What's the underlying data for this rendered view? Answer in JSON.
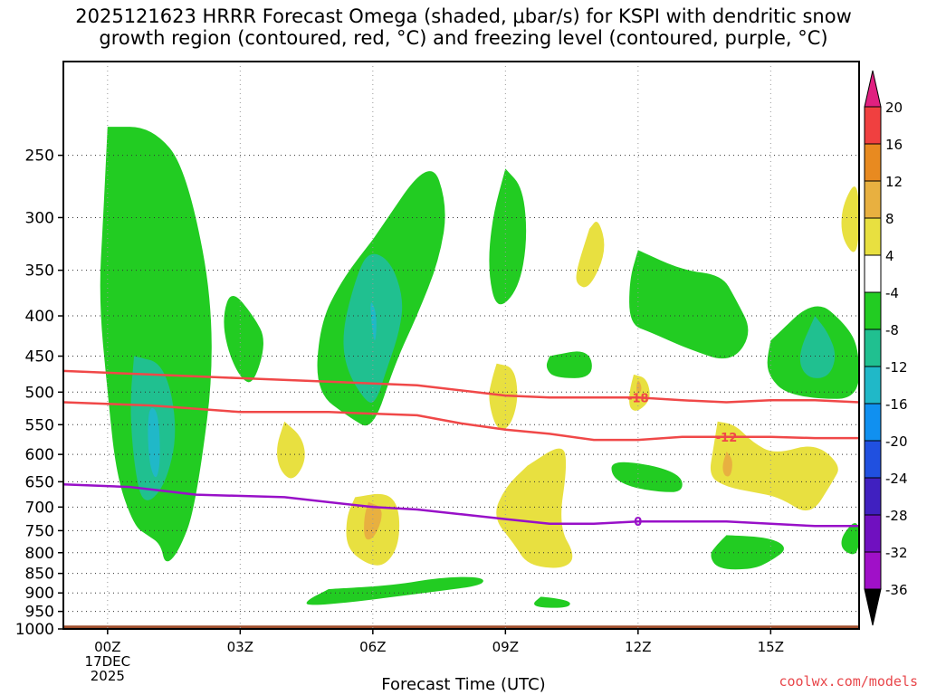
{
  "title_line1": "2025121623 HRRR Forecast Omega (shaded, μbar/s) for KSPI with dendritic snow",
  "title_line2": "growth region (contoured, red, °C) and freezing level (contoured, purple, °C)",
  "credit": "coolwx.com/models",
  "chart_data": {
    "type": "time-height contour",
    "title": "2025121623 HRRR Forecast Omega (shaded, μbar/s) for KSPI with dendritic snow growth region (contoured, red, °C) and freezing level (contoured, purple, °C)",
    "xlabel": "Forecast Time (UTC)",
    "ylabel": "",
    "x_ticks": [
      "00Z",
      "03Z",
      "06Z",
      "09Z",
      "12Z",
      "15Z"
    ],
    "x_hours": [
      0,
      3,
      6,
      9,
      12,
      15
    ],
    "x_range_hours": [
      -1,
      17
    ],
    "date_label": [
      "17DEC",
      "2025"
    ],
    "y_ticks": [
      250,
      300,
      350,
      400,
      450,
      500,
      550,
      600,
      650,
      700,
      750,
      800,
      850,
      900,
      950,
      1000
    ],
    "y_range_hpa": [
      190,
      1000
    ],
    "grid": true,
    "colorbar": {
      "labels": [
        "20",
        "16",
        "12",
        "8",
        "4",
        "-4",
        "-8",
        "-12",
        "-16",
        "-20",
        "-24",
        "-28",
        "-32",
        "-36"
      ],
      "levels": [
        20,
        16,
        12,
        8,
        4,
        -4,
        -8,
        -12,
        -16,
        -20,
        -24,
        -28,
        -32,
        -36
      ],
      "colors": [
        "#f0c800",
        "#e8e040",
        "#e8b040",
        "#e88a20",
        "#f04040",
        "#e02080",
        "#ffffff",
        "#22cc22",
        "#20c090",
        "#20b8c8",
        "#1090f0",
        "#2050e0",
        "#4020c0",
        "#7010c0",
        "#a010c8",
        "#a0a0a0",
        "#000000"
      ]
    },
    "series": [
      {
        "name": "-18 °C isotherm",
        "color": "#f04848",
        "label": "-18",
        "x": [
          -1,
          1,
          3,
          5,
          7,
          9,
          10,
          11,
          12,
          13,
          14,
          15,
          16,
          17
        ],
        "y": [
          470,
          475,
          480,
          485,
          490,
          505,
          508,
          508,
          508,
          512,
          515,
          512,
          512,
          515
        ]
      },
      {
        "name": "-12 °C isotherm",
        "color": "#f04848",
        "label": "-12",
        "x": [
          -1,
          1,
          3,
          5,
          7,
          8,
          9,
          10,
          11,
          12,
          13,
          14,
          15,
          16,
          17
        ],
        "y": [
          515,
          520,
          530,
          530,
          535,
          548,
          558,
          565,
          575,
          575,
          570,
          570,
          570,
          572,
          572
        ]
      },
      {
        "name": "0 °C freezing level",
        "color": "#9810c8",
        "label": "0",
        "x": [
          -1,
          0.5,
          2,
          4,
          6,
          7,
          8,
          9,
          10,
          11,
          12,
          13,
          14,
          15,
          16,
          17
        ],
        "y": [
          655,
          660,
          675,
          680,
          700,
          705,
          715,
          725,
          735,
          735,
          730,
          730,
          730,
          735,
          740,
          740
        ]
      }
    ],
    "shaded_regions": [
      {
        "value": "-4 to -8",
        "color": "#22cc22",
        "x": [
          0,
          1,
          1.8,
          2.5,
          2,
          1.6,
          1.3,
          1.2,
          0.9,
          0.6,
          0.2,
          0,
          -0.2,
          -0.1,
          0
        ],
        "y": [
          230,
          230,
          260,
          420,
          700,
          800,
          830,
          780,
          760,
          740,
          640,
          500,
          380,
          300,
          230
        ]
      },
      {
        "value": "-8 to -12",
        "color": "#20c090",
        "x": [
          0.6,
          1.3,
          1.6,
          1.3,
          0.8,
          0.6,
          0.5,
          0.6
        ],
        "y": [
          450,
          460,
          560,
          660,
          700,
          620,
          520,
          450
        ]
      },
      {
        "value": "-12 to -16",
        "color": "#20b8c8",
        "x": [
          0.95,
          1.15,
          1.2,
          1.1,
          0.95,
          0.9
        ],
        "y": [
          520,
          530,
          610,
          650,
          620,
          560
        ]
      },
      {
        "value": "-4 to -8",
        "color": "#22cc22",
        "x": [
          2.8,
          3.3,
          3.6,
          3.3,
          3,
          2.7,
          2.6
        ],
        "y": [
          370,
          400,
          430,
          490,
          480,
          440,
          400
        ]
      },
      {
        "value": "-4 to -8",
        "color": "#22cc22",
        "x": [
          6,
          7.3,
          7.7,
          7.5,
          7,
          6.5,
          6,
          5.5,
          4.7,
          4.8,
          5.3,
          6
        ],
        "y": [
          320,
          250,
          290,
          340,
          400,
          460,
          560,
          540,
          500,
          410,
          360,
          320
        ]
      },
      {
        "value": "-8 to -12",
        "color": "#20c090",
        "x": [
          5.9,
          6.4,
          6.7,
          6.6,
          6.3,
          6.1,
          5.9,
          5.4,
          5.3,
          5.6
        ],
        "y": [
          330,
          340,
          380,
          420,
          470,
          510,
          520,
          470,
          420,
          360
        ]
      },
      {
        "value": "-12 to -16",
        "color": "#20b8c8",
        "x": [
          5.95,
          6.1,
          6.05,
          5.95
        ],
        "y": [
          380,
          400,
          440,
          400
        ]
      },
      {
        "value": "-4 to -8",
        "color": "#22cc22",
        "x": [
          9,
          9.4,
          9.5,
          9.3,
          8.8,
          8.6,
          8.7,
          9
        ],
        "y": [
          260,
          275,
          320,
          370,
          395,
          350,
          300,
          260
        ]
      },
      {
        "value": "-4 to -8",
        "color": "#22cc22",
        "x": [
          12,
          13,
          13.9,
          14.2,
          14.6,
          14.1,
          13.1,
          12.3,
          11.8,
          11.8,
          12
        ],
        "y": [
          330,
          350,
          355,
          380,
          420,
          460,
          440,
          420,
          410,
          360,
          330
        ]
      },
      {
        "value": "-4 to -8",
        "color": "#22cc22",
        "x": [
          15,
          16,
          16.7,
          17,
          17,
          16,
          15.3,
          15,
          14.9,
          15
        ],
        "y": [
          430,
          380,
          410,
          440,
          510,
          510,
          500,
          480,
          460,
          430
        ]
      },
      {
        "value": "-8 to -12",
        "color": "#20c090",
        "x": [
          16,
          16.3,
          16.5,
          16.3,
          15.8,
          15.6,
          16
        ],
        "y": [
          400,
          420,
          450,
          480,
          480,
          450,
          400
        ]
      },
      {
        "value": "-4 to -8",
        "color": "#22cc22",
        "x": [
          10,
          10.9,
          11,
          10.1,
          9.9,
          10
        ],
        "y": [
          450,
          440,
          480,
          480,
          465,
          450
        ]
      },
      {
        "value": "-4 to -8",
        "color": "#22cc22",
        "x": [
          11.4,
          12.4,
          13,
          13,
          12.5,
          11.8,
          11.4
        ],
        "y": [
          610,
          620,
          640,
          670,
          670,
          660,
          640
        ]
      },
      {
        "value": "-4 to -8",
        "color": "#22cc22",
        "x": [
          14,
          15,
          15.4,
          15,
          14.6,
          13.8,
          13.6,
          13.8,
          14
        ],
        "y": [
          760,
          765,
          790,
          820,
          840,
          840,
          805,
          780,
          760
        ]
      },
      {
        "value": "-4 to -8",
        "color": "#22cc22",
        "x": [
          5,
          6.5,
          7.5,
          8.5,
          8.5,
          7.5,
          6.5,
          5.5,
          4.5,
          4.5,
          5
        ],
        "y": [
          890,
          880,
          860,
          858,
          880,
          895,
          910,
          925,
          935,
          920,
          890
        ]
      },
      {
        "value": "-4 to -8",
        "color": "#22cc22",
        "x": [
          9.8,
          10.2,
          10.5,
          10.4,
          9.8,
          9.6,
          9.8
        ],
        "y": [
          910,
          915,
          925,
          940,
          940,
          930,
          910
        ]
      },
      {
        "value": "-4 to -8",
        "color": "#22cc22",
        "x": [
          16.6,
          17,
          17,
          16.6
        ],
        "y": [
          760,
          720,
          810,
          795
        ]
      },
      {
        "value": "4 to 8",
        "color": "#e8e040",
        "x": [
          16.6,
          17,
          17,
          16.6
        ],
        "y": [
          290,
          265,
          340,
          320
        ]
      },
      {
        "value": "4 to 8",
        "color": "#e8e040",
        "x": [
          10.9,
          11.1,
          11.3,
          10.9,
          10.6,
          10.6,
          10.9
        ],
        "y": [
          310,
          300,
          330,
          370,
          365,
          350,
          310
        ]
      },
      {
        "value": "4 to 8",
        "color": "#e8e040",
        "x": [
          8.8,
          9.2,
          9.3,
          9.1,
          8.8,
          8.6,
          8.7,
          8.8
        ],
        "y": [
          460,
          465,
          510,
          555,
          560,
          510,
          480,
          460
        ]
      },
      {
        "value": "4 to 8",
        "color": "#e8e040",
        "x": [
          11.9,
          12.2,
          12.3,
          12,
          11.8,
          11.8,
          11.9
        ],
        "y": [
          475,
          480,
          510,
          530,
          525,
          500,
          475
        ]
      },
      {
        "value": "4 to 8",
        "color": "#e8e040",
        "x": [
          4,
          4.4,
          4.5,
          4.2,
          3.9,
          3.8,
          4
        ],
        "y": [
          545,
          570,
          610,
          650,
          630,
          590,
          545
        ]
      },
      {
        "value": "4 to 8",
        "color": "#e8e040",
        "x": [
          9.5,
          10.3,
          10.4,
          10.2,
          10.6,
          10.3,
          9.5,
          9.2,
          8.7,
          9,
          9.5
        ],
        "y": [
          620,
          580,
          620,
          740,
          810,
          840,
          830,
          780,
          720,
          660,
          620
        ]
      },
      {
        "value": "4 to 8",
        "color": "#e8e040",
        "x": [
          13.8,
          14.2,
          14.6,
          15.1,
          16,
          16.6,
          16.4,
          15.9,
          15.2,
          14.6,
          14,
          13.6,
          13.7,
          13.8
        ],
        "y": [
          545,
          550,
          580,
          600,
          580,
          620,
          650,
          720,
          680,
          670,
          660,
          640,
          590,
          545
        ]
      },
      {
        "value": "4 to 8",
        "color": "#e8e040",
        "x": [
          5.6,
          6.3,
          6.6,
          6.6,
          6.3,
          5.9,
          5.4,
          5.4,
          5.6
        ],
        "y": [
          680,
          670,
          700,
          780,
          830,
          830,
          790,
          720,
          680
        ]
      },
      {
        "value": "8 to 12",
        "color": "#e8b040",
        "x": [
          5.9,
          6.2,
          6.2,
          6,
          5.8,
          5.8,
          5.9
        ],
        "y": [
          690,
          700,
          730,
          770,
          770,
          720,
          690
        ]
      },
      {
        "value": "8 to 12",
        "color": "#e8b040",
        "x": [
          14,
          14.15,
          14.1,
          13.95,
          13.9,
          14
        ],
        "y": [
          595,
          610,
          640,
          640,
          620,
          595
        ]
      },
      {
        "value": "8 to 12",
        "color": "#e8b040",
        "x": [
          12,
          12.1,
          12,
          11.95
        ],
        "y": [
          480,
          495,
          505,
          495
        ]
      },
      {
        "value": "ground",
        "color": "#a04e2c",
        "x": [
          -1,
          17,
          17,
          -1
        ],
        "y": [
          990,
          990,
          1030,
          1030
        ]
      }
    ]
  }
}
